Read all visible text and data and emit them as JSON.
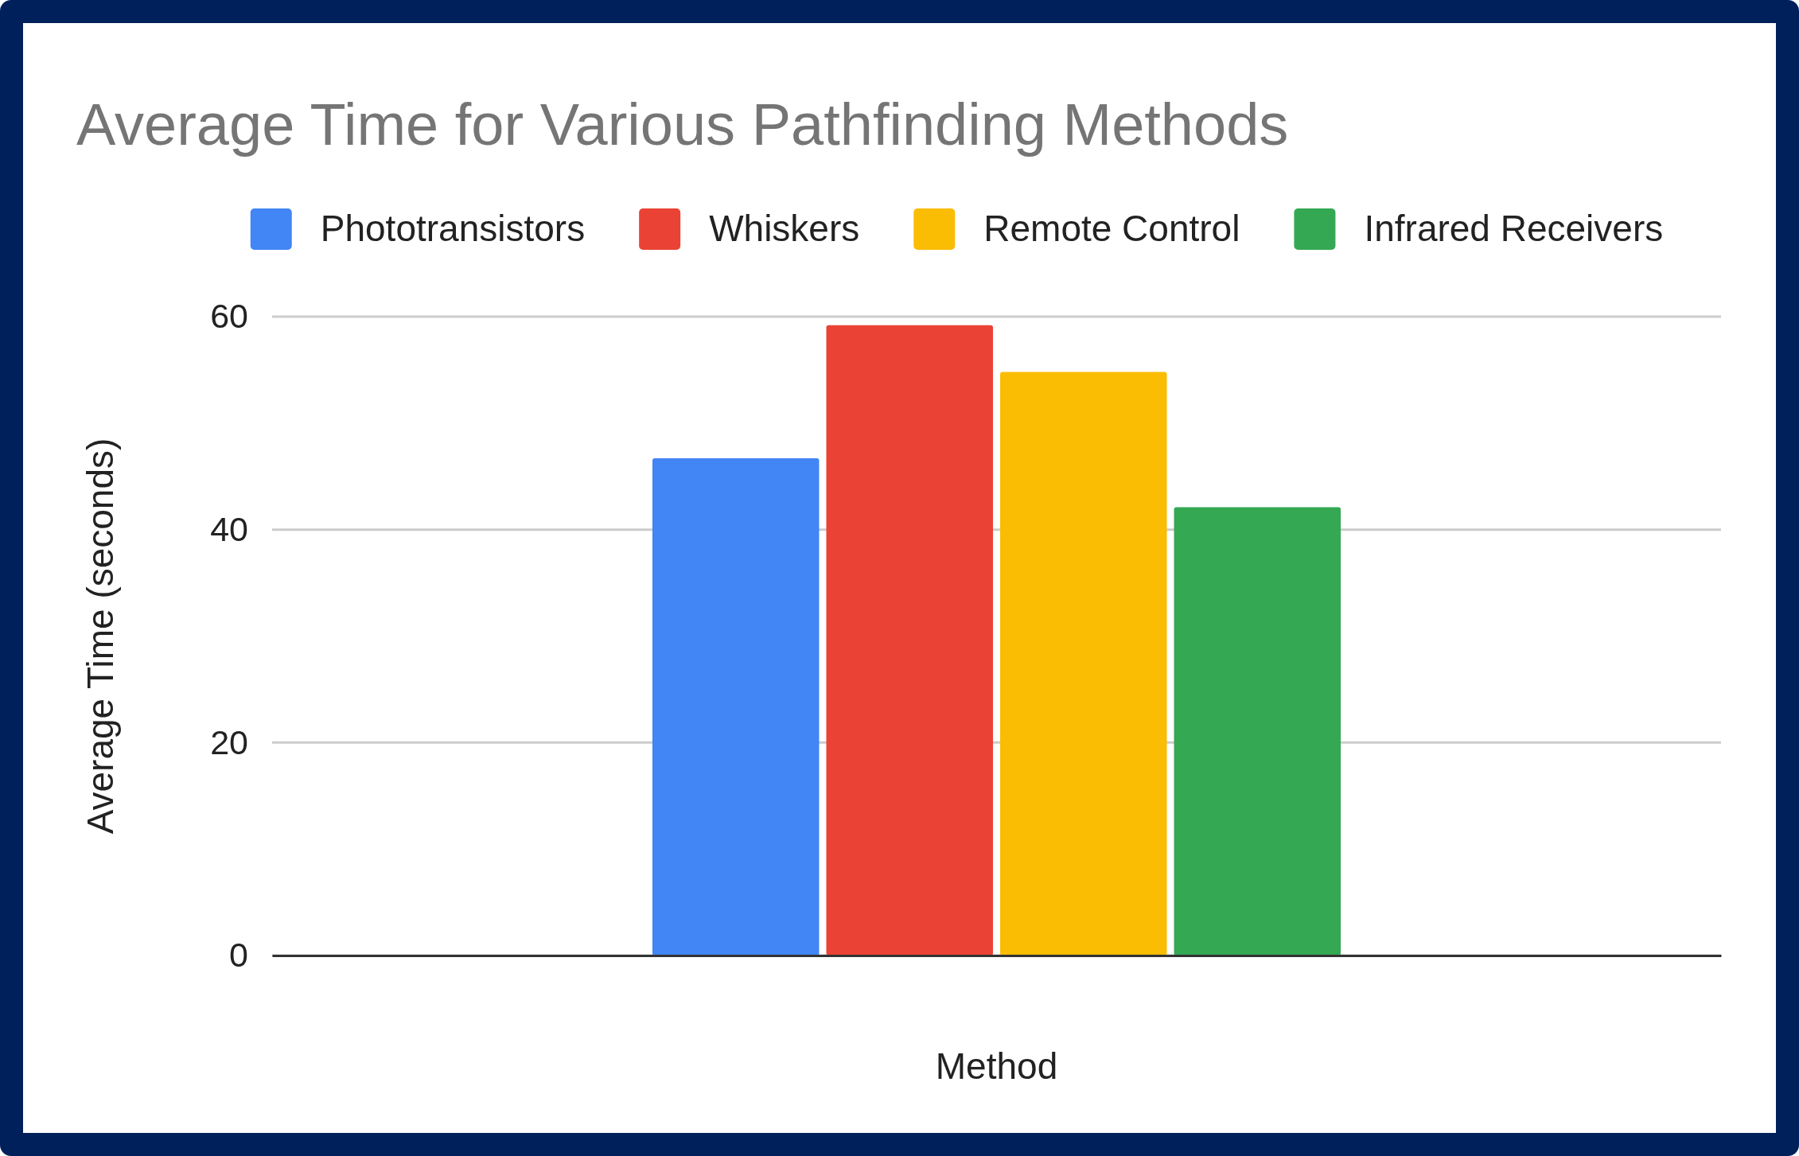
{
  "chart_data": {
    "type": "bar",
    "title": "Average Time for Various Pathfinding Methods",
    "xlabel": "Method",
    "ylabel": "Average Time (seconds)",
    "categories": [
      null
    ],
    "series": [
      {
        "name": "Phototransistors",
        "color": "#4285f4",
        "values": [
          46.7
        ]
      },
      {
        "name": "Whiskers",
        "color": "#ea4335",
        "values": [
          59.2
        ]
      },
      {
        "name": "Remote Control",
        "color": "#fbbc04",
        "values": [
          54.8
        ]
      },
      {
        "name": "Infrared Receivers",
        "color": "#34a853",
        "values": [
          42.1
        ]
      }
    ],
    "ylim": [
      0,
      60
    ],
    "yticks": [
      0,
      20,
      40,
      60
    ],
    "grid": "y",
    "legend": "top"
  }
}
